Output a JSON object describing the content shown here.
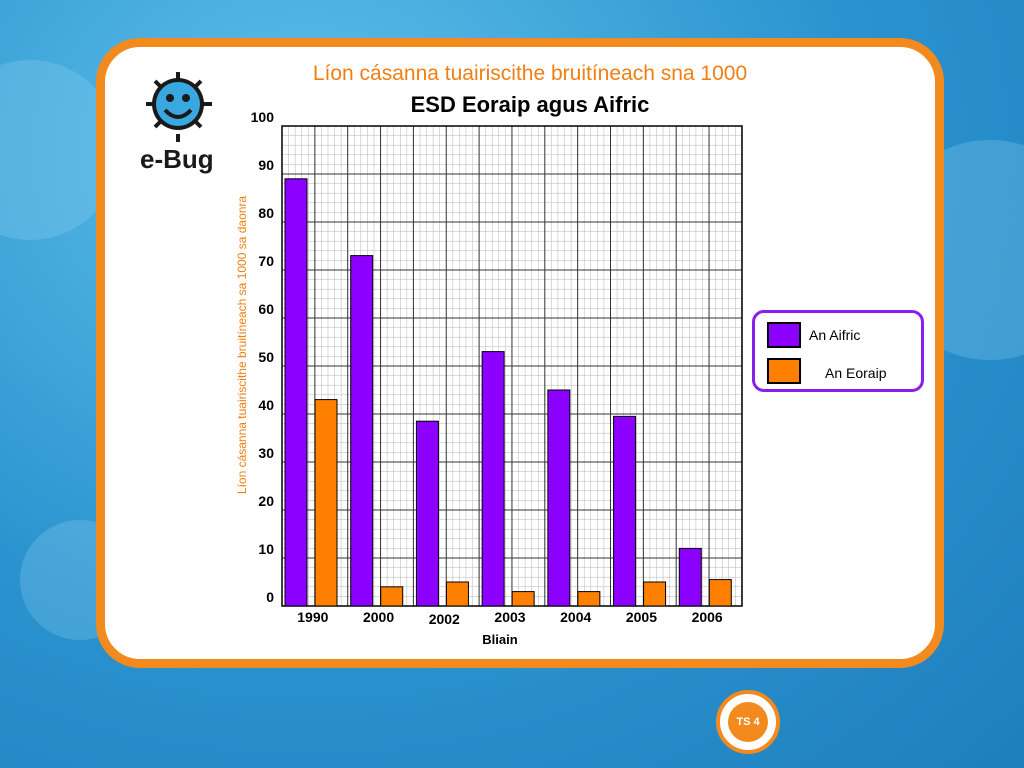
{
  "chart_data": {
    "type": "bar",
    "title": "Líon cásanna tuairiscithe bruitíneach sna  1000",
    "subtitle": "ESD Eoraip agus Aifric",
    "ylabel": "Líon cásanna tuairiscithe  bruitíneach sa  1000 sa daonra",
    "xlabel": "Bliain",
    "categories": [
      "1990",
      "2000",
      "2002",
      "2003",
      "2004",
      "2005",
      "2006"
    ],
    "ylim": [
      0,
      100
    ],
    "yticks": [
      "0",
      "10",
      "20",
      "30",
      "40",
      "50",
      "60",
      "70",
      "80",
      "90",
      "100"
    ],
    "grid": true,
    "series": [
      {
        "name": "An Aifric",
        "color": "#8b00ff",
        "values": [
          89,
          73,
          38.5,
          53,
          45,
          39.5,
          12
        ]
      },
      {
        "name": "An Eoraip",
        "color": "#ff7f00",
        "values": [
          43,
          4,
          5,
          3,
          3,
          5,
          5.5
        ]
      }
    ],
    "legend_position": "right"
  },
  "logo": {
    "text": "e-Bug",
    "icon": "smiling-bug-icon"
  },
  "badge": {
    "text": "TS 4"
  }
}
